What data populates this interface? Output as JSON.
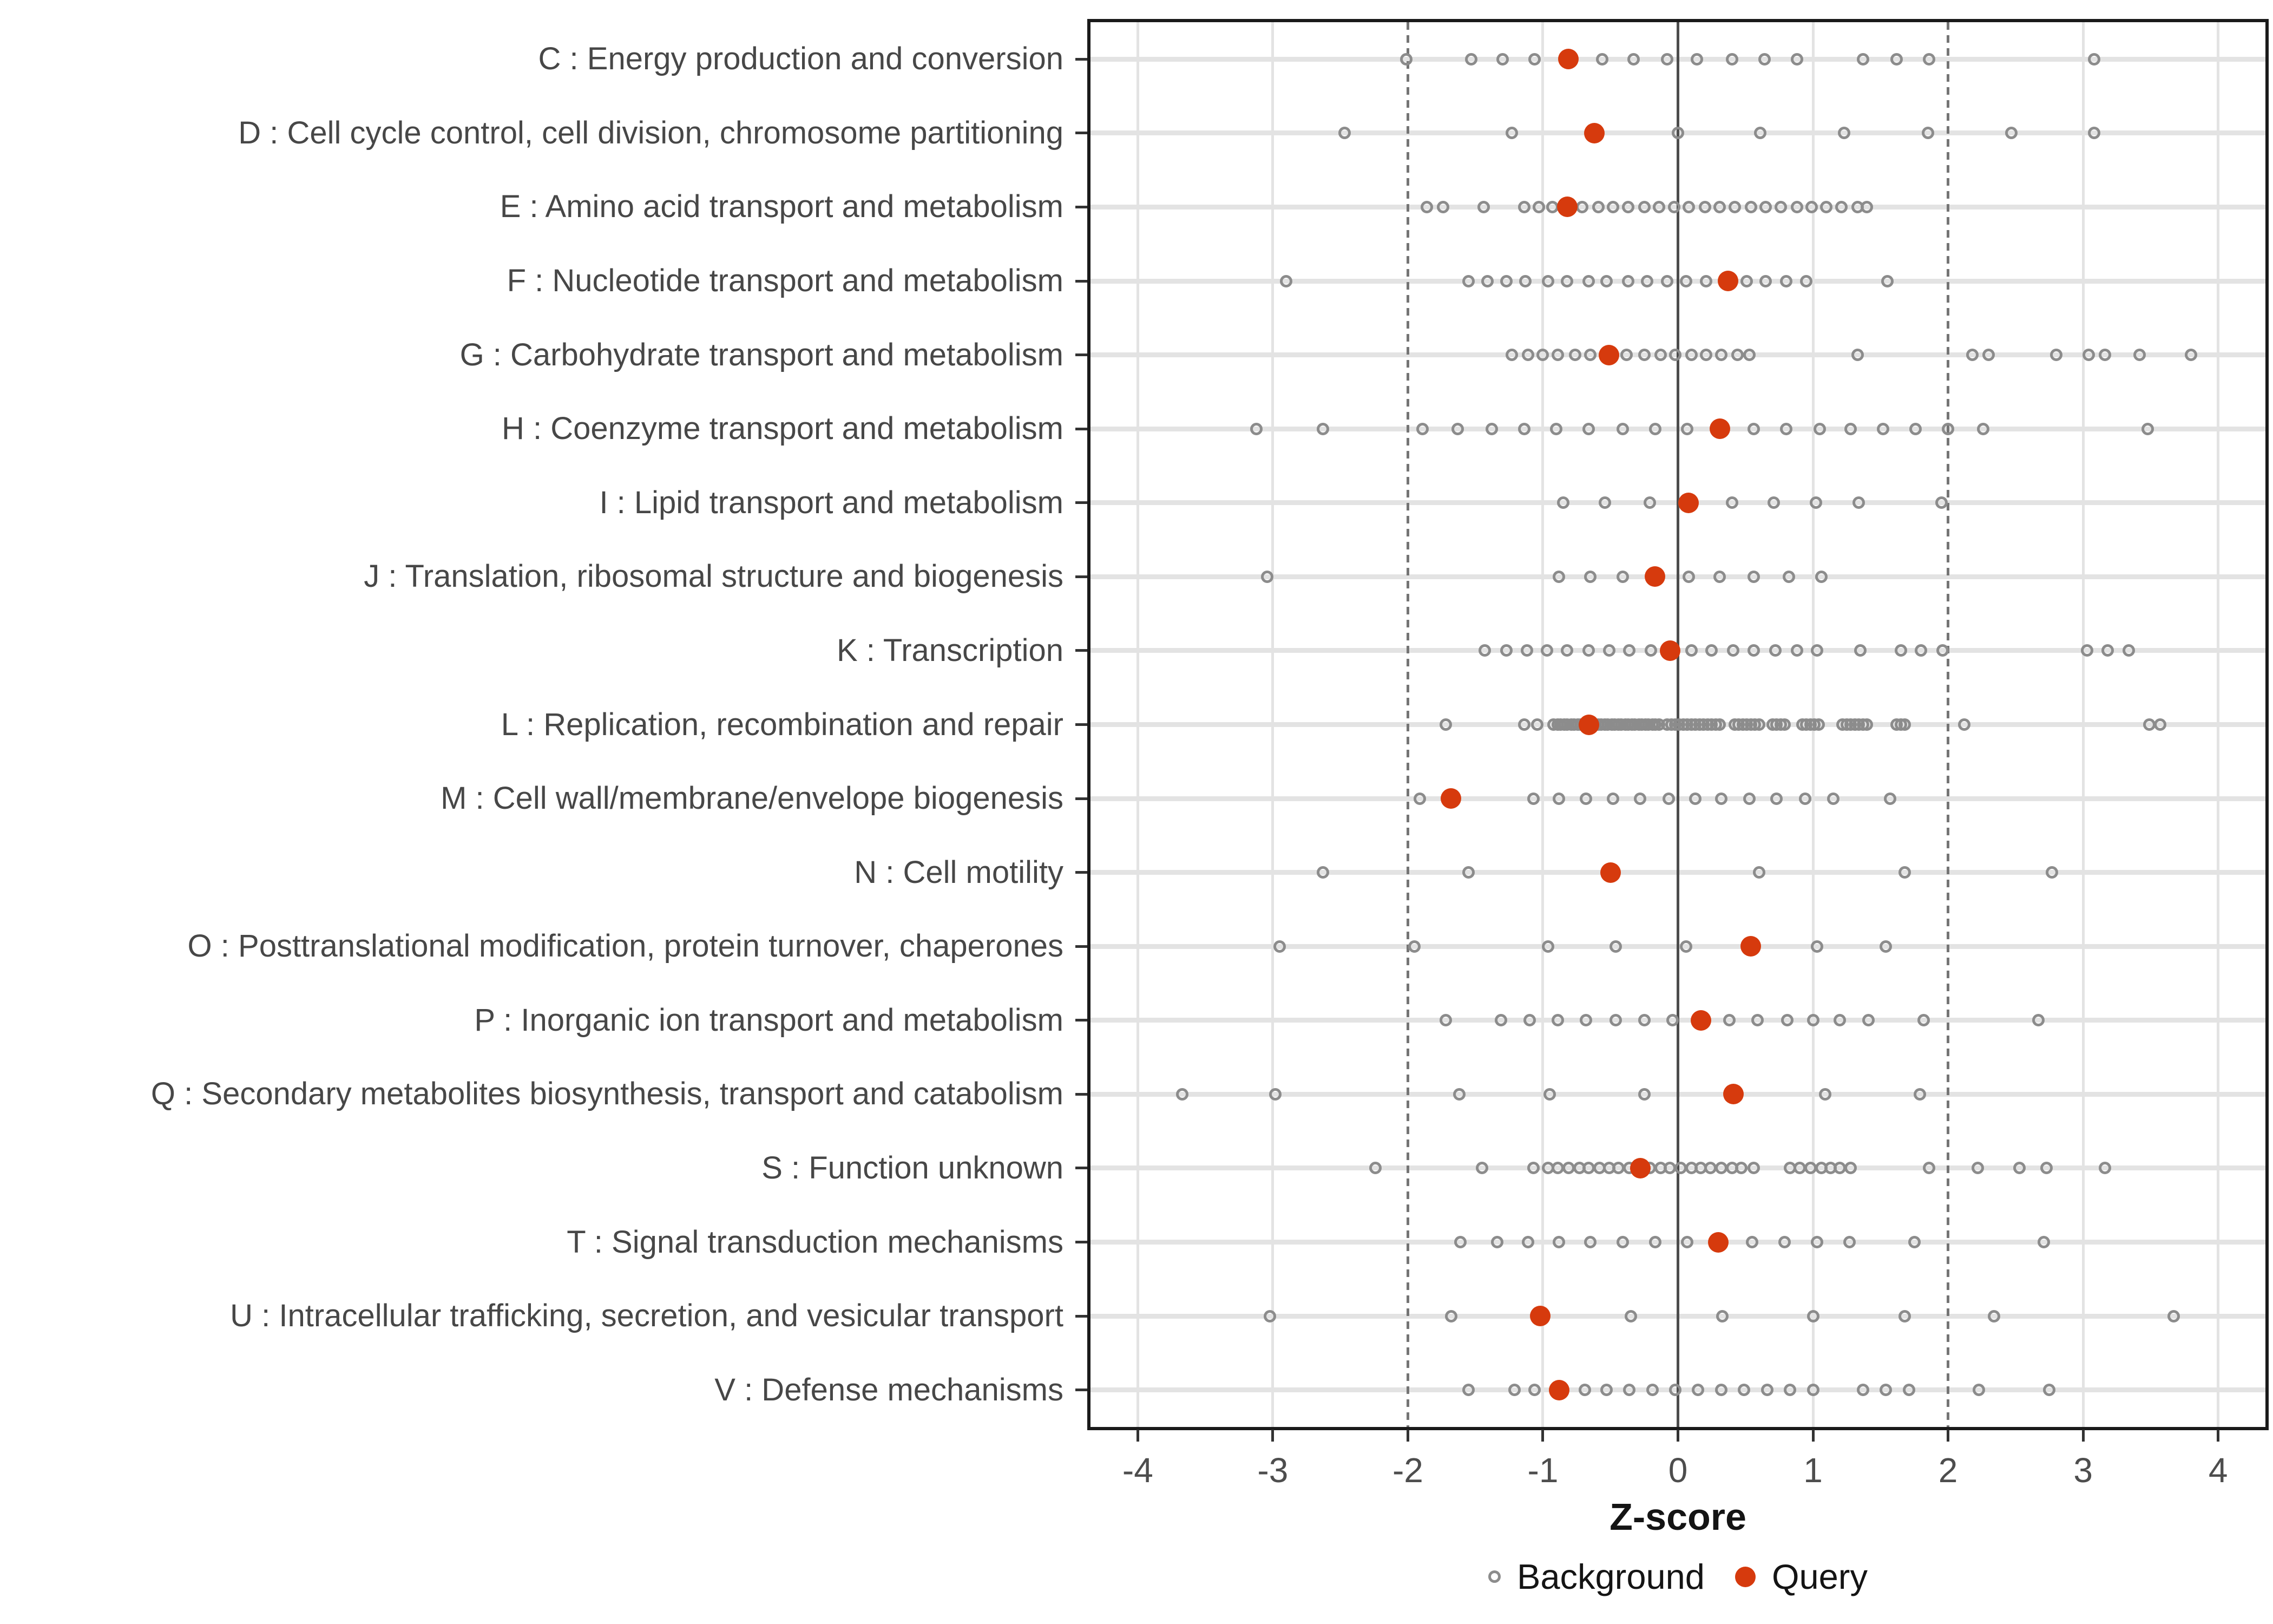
{
  "chart_data": {
    "type": "scatter",
    "subtype": "strip-dot-plot",
    "title": "",
    "xlabel": "Z-score",
    "ylabel": "",
    "xlim": [
      -4.35,
      4.35
    ],
    "x_ticks": [
      -4,
      -3,
      -2,
      -1,
      0,
      1,
      2,
      3,
      4
    ],
    "ref_lines": {
      "solid": [
        0
      ],
      "dashed": [
        -2,
        2
      ]
    },
    "grid": true,
    "legend": {
      "position": "bottom",
      "entries": [
        {
          "label": "Background",
          "marker": "open-circle",
          "color": "#8c8c8c"
        },
        {
          "label": "Query",
          "marker": "filled-circle",
          "color": "#d63a0d"
        }
      ]
    },
    "rows": [
      {
        "code": "C",
        "label": "C : Energy production and conversion",
        "background": [
          -2.01,
          -1.53,
          -1.3,
          -1.06,
          -0.56,
          -0.33,
          -0.08,
          0.14,
          0.4,
          0.64,
          0.88,
          1.37,
          1.62,
          1.86,
          3.08
        ],
        "query": -0.81
      },
      {
        "code": "D",
        "label": "D : Cell cycle control, cell division, chromosome partitioning",
        "background": [
          -2.47,
          -1.23,
          0.0,
          0.61,
          1.23,
          1.85,
          2.47,
          3.08
        ],
        "query": -0.62
      },
      {
        "code": "E",
        "label": "E : Amino acid transport and metabolism",
        "background": [
          -1.86,
          -1.74,
          -1.44,
          -1.14,
          -1.03,
          -0.93,
          -0.71,
          -0.59,
          -0.48,
          -0.37,
          -0.25,
          -0.14,
          -0.03,
          0.08,
          0.2,
          0.31,
          0.42,
          0.54,
          0.65,
          0.76,
          0.88,
          0.99,
          1.1,
          1.21,
          1.33,
          1.4
        ],
        "query": -0.82
      },
      {
        "code": "F",
        "label": "F : Nucleotide transport and metabolism",
        "background": [
          -2.9,
          -1.55,
          -1.41,
          -1.27,
          -1.13,
          -0.96,
          -0.82,
          -0.66,
          -0.53,
          -0.37,
          -0.23,
          -0.08,
          0.06,
          0.21,
          0.51,
          0.65,
          0.8,
          0.95,
          1.55
        ],
        "query": 0.37
      },
      {
        "code": "G",
        "label": "G : Carbohydrate transport and metabolism",
        "background": [
          -1.23,
          -1.11,
          -1.0,
          -0.89,
          -0.76,
          -0.65,
          -0.38,
          -0.25,
          -0.13,
          -0.02,
          0.1,
          0.21,
          0.32,
          0.44,
          0.53,
          1.33,
          2.18,
          2.3,
          2.8,
          3.04,
          3.16,
          3.42,
          3.8
        ],
        "query": -0.51
      },
      {
        "code": "H",
        "label": "H : Coenzyme transport and metabolism",
        "background": [
          -3.12,
          -2.63,
          -1.89,
          -1.63,
          -1.38,
          -1.14,
          -0.9,
          -0.66,
          -0.41,
          -0.17,
          0.07,
          0.56,
          0.8,
          1.05,
          1.28,
          1.52,
          1.76,
          2.0,
          2.26,
          3.48
        ],
        "query": 0.31
      },
      {
        "code": "I",
        "label": "I : Lipid transport and metabolism",
        "background": [
          -0.85,
          -0.54,
          -0.21,
          0.4,
          0.71,
          1.02,
          1.34,
          1.95
        ],
        "query": 0.08
      },
      {
        "code": "J",
        "label": "J : Translation, ribosomal structure and biogenesis",
        "background": [
          -3.04,
          -0.88,
          -0.65,
          -0.41,
          0.08,
          0.31,
          0.56,
          0.82,
          1.06
        ],
        "query": -0.17
      },
      {
        "code": "K",
        "label": "K : Transcription",
        "background": [
          -1.43,
          -1.27,
          -1.12,
          -0.97,
          -0.82,
          -0.66,
          -0.51,
          -0.36,
          -0.2,
          0.1,
          0.25,
          0.41,
          0.56,
          0.72,
          0.88,
          1.03,
          1.35,
          1.65,
          1.8,
          1.96,
          3.03,
          3.18,
          3.34
        ],
        "query": -0.06
      },
      {
        "code": "L",
        "label": "L : Replication, recombination and repair",
        "background": [
          -1.72,
          -1.14,
          -1.04,
          -0.92,
          -0.89,
          -0.87,
          -0.84,
          -0.82,
          -0.79,
          -0.77,
          -0.74,
          -0.72,
          -0.69,
          -0.67,
          -0.64,
          -0.62,
          -0.59,
          -0.57,
          -0.54,
          -0.52,
          -0.49,
          -0.47,
          -0.44,
          -0.42,
          -0.39,
          -0.37,
          -0.34,
          -0.32,
          -0.29,
          -0.27,
          -0.24,
          -0.22,
          -0.19,
          -0.17,
          -0.14,
          -0.08,
          -0.05,
          -0.02,
          0.01,
          0.04,
          0.07,
          0.1,
          0.13,
          0.16,
          0.19,
          0.22,
          0.25,
          0.28,
          0.31,
          0.42,
          0.45,
          0.48,
          0.51,
          0.54,
          0.57,
          0.6,
          0.7,
          0.73,
          0.76,
          0.79,
          0.92,
          0.95,
          0.98,
          1.01,
          1.04,
          1.22,
          1.25,
          1.28,
          1.31,
          1.34,
          1.37,
          1.4,
          1.62,
          1.65,
          1.68,
          2.12,
          3.49,
          3.57
        ],
        "query": -0.66
      },
      {
        "code": "M",
        "label": "M : Cell wall/membrane/envelope biogenesis",
        "background": [
          -1.91,
          -1.07,
          -0.88,
          -0.68,
          -0.48,
          -0.28,
          -0.07,
          0.13,
          0.32,
          0.53,
          0.73,
          0.94,
          1.15,
          1.57
        ],
        "query": -1.68
      },
      {
        "code": "N",
        "label": "N : Cell motility",
        "background": [
          -2.63,
          -1.55,
          0.6,
          1.68,
          2.77
        ],
        "query": -0.5
      },
      {
        "code": "O",
        "label": "O : Posttranslational modification, protein turnover, chaperones",
        "background": [
          -2.95,
          -1.95,
          -0.96,
          -0.46,
          0.06,
          1.03,
          1.54
        ],
        "query": 0.54
      },
      {
        "code": "P",
        "label": "P : Inorganic ion transport and metabolism",
        "background": [
          -1.72,
          -1.31,
          -1.1,
          -0.89,
          -0.68,
          -0.46,
          -0.25,
          -0.04,
          0.38,
          0.59,
          0.81,
          1.0,
          1.2,
          1.41,
          1.82,
          2.67
        ],
        "query": 0.17
      },
      {
        "code": "Q",
        "label": "Q : Secondary metabolites biosynthesis, transport and catabolism",
        "background": [
          -3.67,
          -2.98,
          -1.62,
          -0.95,
          -0.25,
          1.09,
          1.79
        ],
        "query": 0.41
      },
      {
        "code": "S",
        "label": "S : Function unknown",
        "background": [
          -2.24,
          -1.45,
          -1.07,
          -0.96,
          -0.89,
          -0.81,
          -0.73,
          -0.66,
          -0.58,
          -0.51,
          -0.44,
          -0.36,
          -0.21,
          -0.13,
          -0.06,
          0.02,
          0.1,
          0.17,
          0.24,
          0.32,
          0.4,
          0.47,
          0.56,
          0.83,
          0.9,
          0.98,
          1.06,
          1.13,
          1.2,
          1.28,
          1.86,
          2.22,
          2.53,
          2.73,
          3.16
        ],
        "query": -0.28
      },
      {
        "code": "T",
        "label": "T : Signal transduction mechanisms",
        "background": [
          -1.61,
          -1.34,
          -1.11,
          -0.88,
          -0.65,
          -0.41,
          -0.17,
          0.07,
          0.55,
          0.79,
          1.03,
          1.27,
          1.75,
          2.71
        ],
        "query": 0.3
      },
      {
        "code": "U",
        "label": "U : Intracellular trafficking, secretion, and vesicular transport",
        "background": [
          -3.02,
          -1.68,
          -0.35,
          0.33,
          1.0,
          1.68,
          2.34,
          3.67
        ],
        "query": -1.02
      },
      {
        "code": "V",
        "label": "V : Defense mechanisms",
        "background": [
          -1.55,
          -1.21,
          -1.06,
          -0.69,
          -0.53,
          -0.36,
          -0.19,
          -0.02,
          0.15,
          0.32,
          0.49,
          0.66,
          0.83,
          1.0,
          1.37,
          1.54,
          1.71,
          2.23,
          2.75
        ],
        "query": -0.88
      }
    ]
  },
  "colors": {
    "query": "#d63a0d",
    "background_stroke": "#8c8c8c",
    "grid": "#e3e3e3",
    "zero_line": "#4d4d4d",
    "dashed_line": "#757575",
    "panel_border": "#1a1a1a",
    "axis_text": "#4d4d4d"
  }
}
